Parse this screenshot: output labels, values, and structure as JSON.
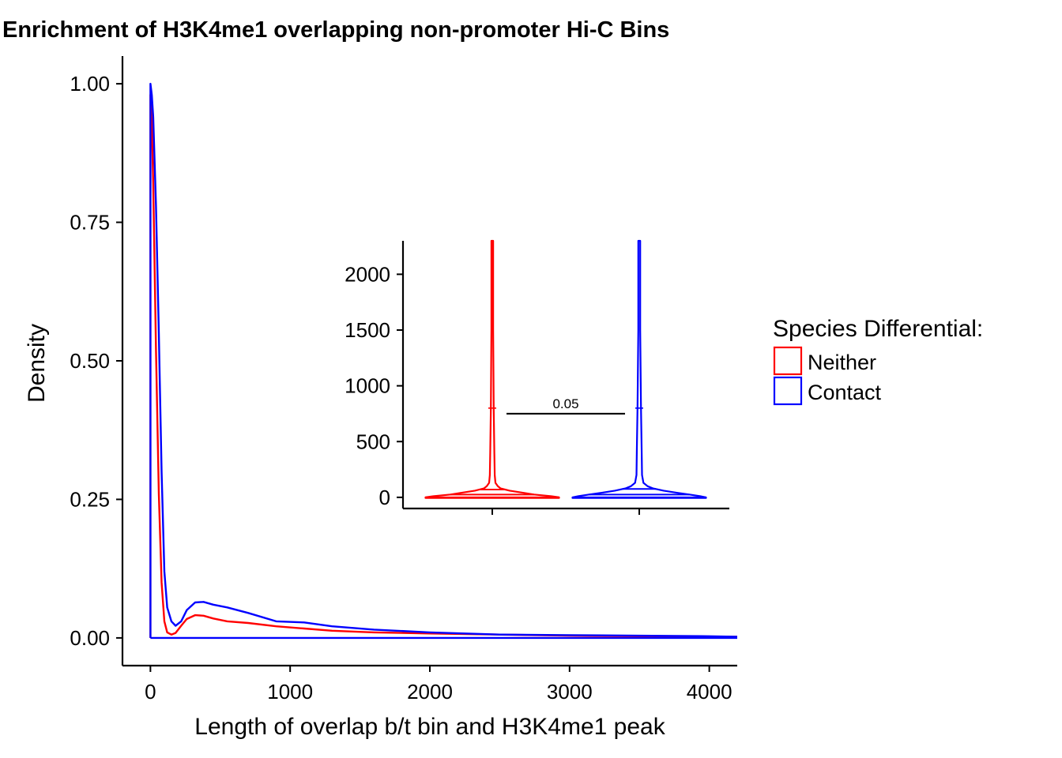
{
  "chart_data": [
    {
      "type": "line",
      "title": "Enrichment of H3K4me1 overlapping non-promoter Hi-C Bins",
      "xlabel": "Length of overlap b/t bin and H3K4me1 peak",
      "ylabel": "Density",
      "xlim": [
        -200,
        4200
      ],
      "ylim": [
        -0.05,
        1.05
      ],
      "x_ticks": [
        "0",
        "1000",
        "2000",
        "3000",
        "4000"
      ],
      "y_ticks": [
        "0.00",
        "0.25",
        "0.50",
        "0.75",
        "1.00"
      ],
      "grid": false,
      "legend": {
        "title": "Species Differential:",
        "position": "right",
        "entries": [
          {
            "label": "Neither",
            "color": "#ff0000"
          },
          {
            "label": "Contact",
            "color": "#0000ff"
          }
        ]
      },
      "series": [
        {
          "name": "Neither",
          "color": "#ff0000",
          "x": [
            0,
            0,
            10,
            20,
            40,
            60,
            80,
            100,
            120,
            150,
            180,
            220,
            260,
            320,
            380,
            450,
            550,
            700,
            900,
            1100,
            1300,
            1600,
            2000,
            2500,
            3000,
            3500,
            4000,
            4200
          ],
          "y": [
            0,
            0.98,
            0.93,
            0.82,
            0.52,
            0.26,
            0.1,
            0.03,
            0.01,
            0.006,
            0.009,
            0.022,
            0.034,
            0.041,
            0.04,
            0.035,
            0.03,
            0.027,
            0.021,
            0.017,
            0.013,
            0.01,
            0.008,
            0.006,
            0.004,
            0.003,
            0.002,
            0.002
          ]
        },
        {
          "name": "Contact",
          "color": "#0000ff",
          "x": [
            0,
            0,
            10,
            20,
            40,
            60,
            80,
            100,
            120,
            150,
            180,
            220,
            260,
            320,
            380,
            450,
            550,
            700,
            900,
            1100,
            1300,
            1600,
            2000,
            2500,
            3000,
            3500,
            4000,
            4200
          ],
          "y": [
            0,
            1.0,
            0.98,
            0.94,
            0.78,
            0.55,
            0.3,
            0.12,
            0.055,
            0.03,
            0.022,
            0.03,
            0.05,
            0.064,
            0.065,
            0.06,
            0.055,
            0.045,
            0.03,
            0.028,
            0.021,
            0.015,
            0.01,
            0.006,
            0.005,
            0.004,
            0.003,
            0.002
          ]
        }
      ]
    },
    {
      "type": "violin",
      "categories": [
        "Neither",
        "Contact"
      ],
      "ylim": [
        -100,
        2300
      ],
      "y_ticks": [
        "0",
        "500",
        "1000",
        "1500",
        "2000"
      ],
      "annotation": {
        "text": "0.05",
        "y": 750
      },
      "series": [
        {
          "name": "Neither",
          "color": "#ff0000",
          "profile_y": [
            -5,
            0,
            10,
            25,
            40,
            60,
            80,
            100,
            130,
            200,
            400,
            800,
            1500,
            2300
          ],
          "profile_halfwidth": [
            0.96,
            0.96,
            0.85,
            0.6,
            0.45,
            0.25,
            0.12,
            0.08,
            0.045,
            0.035,
            0.03,
            0.02,
            0.012,
            0.012
          ],
          "quantile_lines": [
            0,
            25,
            70
          ]
        },
        {
          "name": "Contact",
          "color": "#0000ff",
          "profile_y": [
            -5,
            0,
            10,
            25,
            40,
            60,
            80,
            100,
            130,
            200,
            400,
            800,
            1500,
            2300
          ],
          "profile_halfwidth": [
            0.96,
            0.96,
            0.88,
            0.72,
            0.55,
            0.35,
            0.2,
            0.12,
            0.06,
            0.04,
            0.035,
            0.025,
            0.014,
            0.014
          ],
          "quantile_lines": [
            0,
            25,
            75
          ]
        }
      ]
    }
  ]
}
